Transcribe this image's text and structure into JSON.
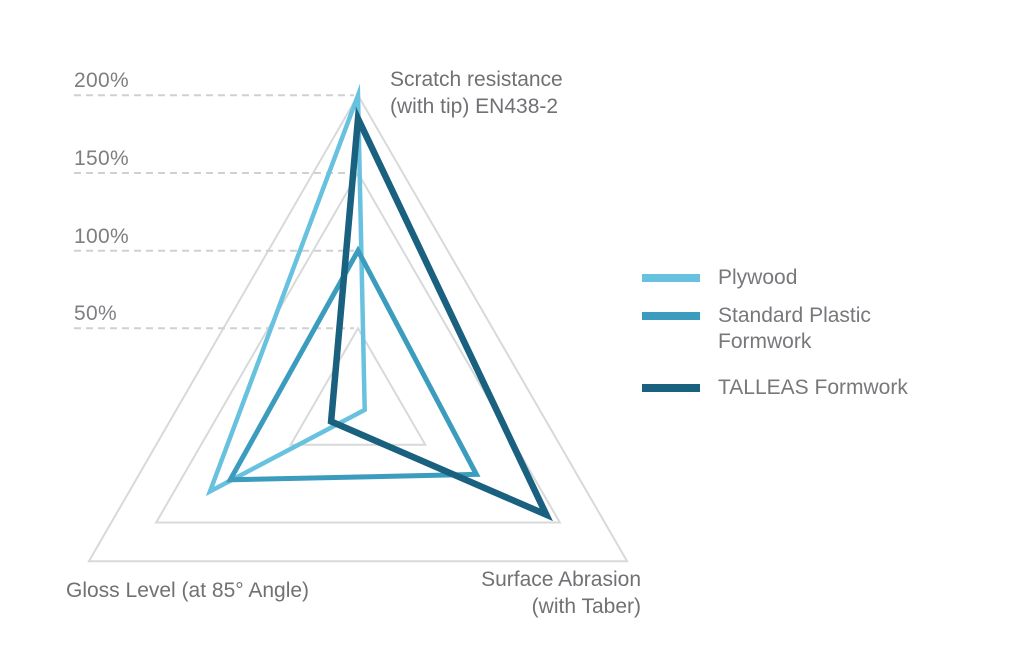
{
  "chart_data": {
    "type": "radar",
    "shape": "triangle",
    "axes": [
      {
        "id": "scratch",
        "label": "Scratch resistance (with tip) EN438-2",
        "label_lines": [
          "Scratch resistance",
          "(with tip) EN438-2"
        ]
      },
      {
        "id": "abrasion",
        "label": "Surface Abrasion (with Taber)",
        "label_lines": [
          "Surface Abrasion",
          "(with Taber)"
        ]
      },
      {
        "id": "gloss",
        "label": "Gloss Level (at 85° Angle)",
        "label_lines": [
          "Gloss Level (at 85° Angle)"
        ]
      }
    ],
    "scale": {
      "unit": "%",
      "max": 200,
      "ticks": [
        {
          "label": "200%",
          "value": 200
        },
        {
          "label": "150%",
          "value": 150
        },
        {
          "label": "100%",
          "value": 100
        },
        {
          "label": "50%",
          "value": 50
        }
      ]
    },
    "grid_levels": [
      200,
      150,
      50
    ],
    "series": [
      {
        "name": "Plywood",
        "color": "#68c2df",
        "stroke_width": 4.5,
        "values": {
          "scratch": 200,
          "abrasion": 5,
          "gloss": 110
        }
      },
      {
        "name": "Standard Plastic Formwork",
        "color": "#3b9cbe",
        "stroke_width": 5,
        "values": {
          "scratch": 100,
          "abrasion": 88,
          "gloss": 95
        }
      },
      {
        "name": "TALLEAS Formwork",
        "color": "#1a607f",
        "stroke_width": 6.5,
        "values": {
          "scratch": 185,
          "abrasion": 140,
          "gloss": 20
        }
      }
    ],
    "legend": [
      {
        "label": "Plywood"
      },
      {
        "label": "Standard Plastic Formwork"
      },
      {
        "label": "TALLEAS Formwork"
      }
    ],
    "grid_color": "#d7d9da",
    "dash_color": "#ced0d2",
    "background": "#ffffff"
  }
}
